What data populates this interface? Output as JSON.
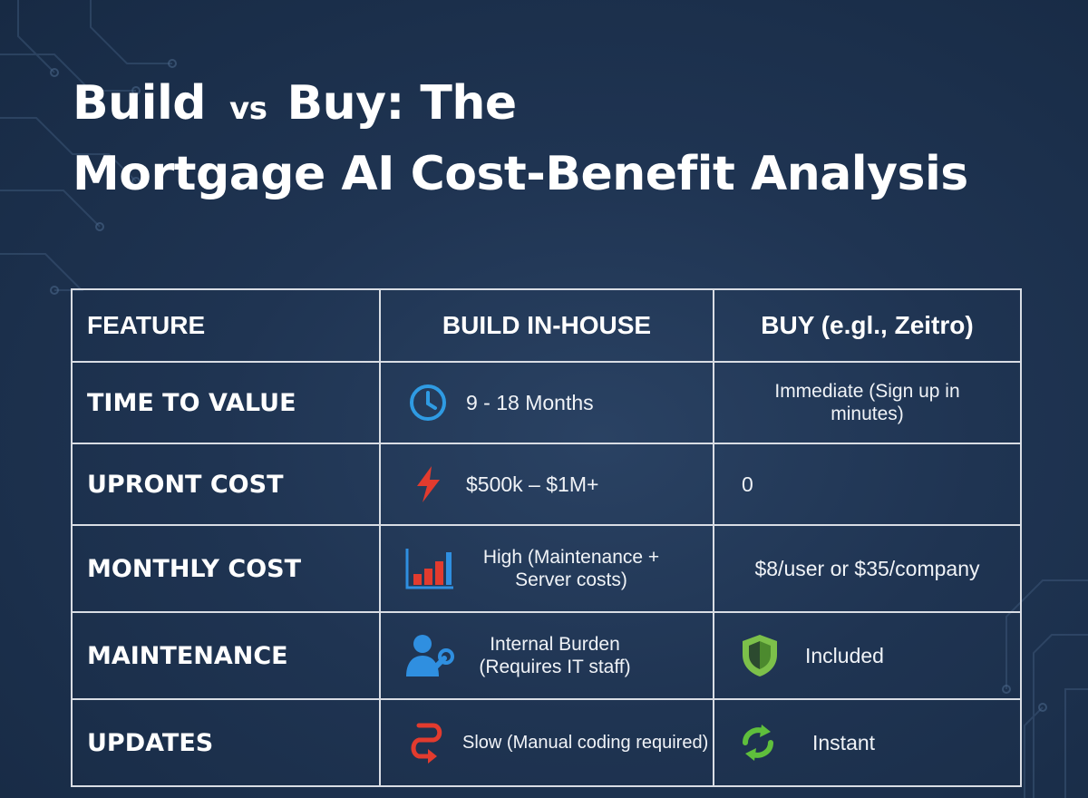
{
  "title": {
    "line1_a": "Build",
    "vs": "vs",
    "line1_b": "Buy: The",
    "line2": "Mortgage AI Cost-Benefit Analysis"
  },
  "table": {
    "headers": [
      "FEATURE",
      "BUILD IN-HOUSE",
      "BUY (e.gl., Zeitro)"
    ],
    "rows": [
      {
        "feature": "TIME TO VALUE",
        "build": "9 - 18 Months",
        "build_icon": "clock-icon",
        "buy": "Immediate (Sign up in minutes)",
        "buy_icon": ""
      },
      {
        "feature": "UPRONT COST",
        "build": "$500k – $1M+",
        "build_icon": "lightning-icon",
        "buy": "0",
        "buy_icon": ""
      },
      {
        "feature": "MONTHLY COST",
        "build": "High (Maintenance + Server costs)",
        "build_icon": "bar-chart-icon",
        "buy": "$8/user or $35/company",
        "buy_icon": ""
      },
      {
        "feature": "MAINTENANCE",
        "build": "Internal Burden (Requires IT staff)",
        "build_icon": "person-wrench-icon",
        "buy": "Included",
        "buy_icon": "shield-icon"
      },
      {
        "feature": "UPDATES",
        "build": "Slow (Manual coding required)",
        "build_icon": "curved-arrow-icon",
        "buy": "Instant",
        "buy_icon": "refresh-icon"
      }
    ]
  },
  "colors": {
    "background": "#1f3452",
    "border": "#d9dde4",
    "clock": "#2f9be3",
    "alert_red": "#e23b2e",
    "chart_blue": "#2f8fe0",
    "person_blue": "#2f8fe0",
    "shield_green": "#7cc04a",
    "refresh_green": "#5fbf3c"
  }
}
